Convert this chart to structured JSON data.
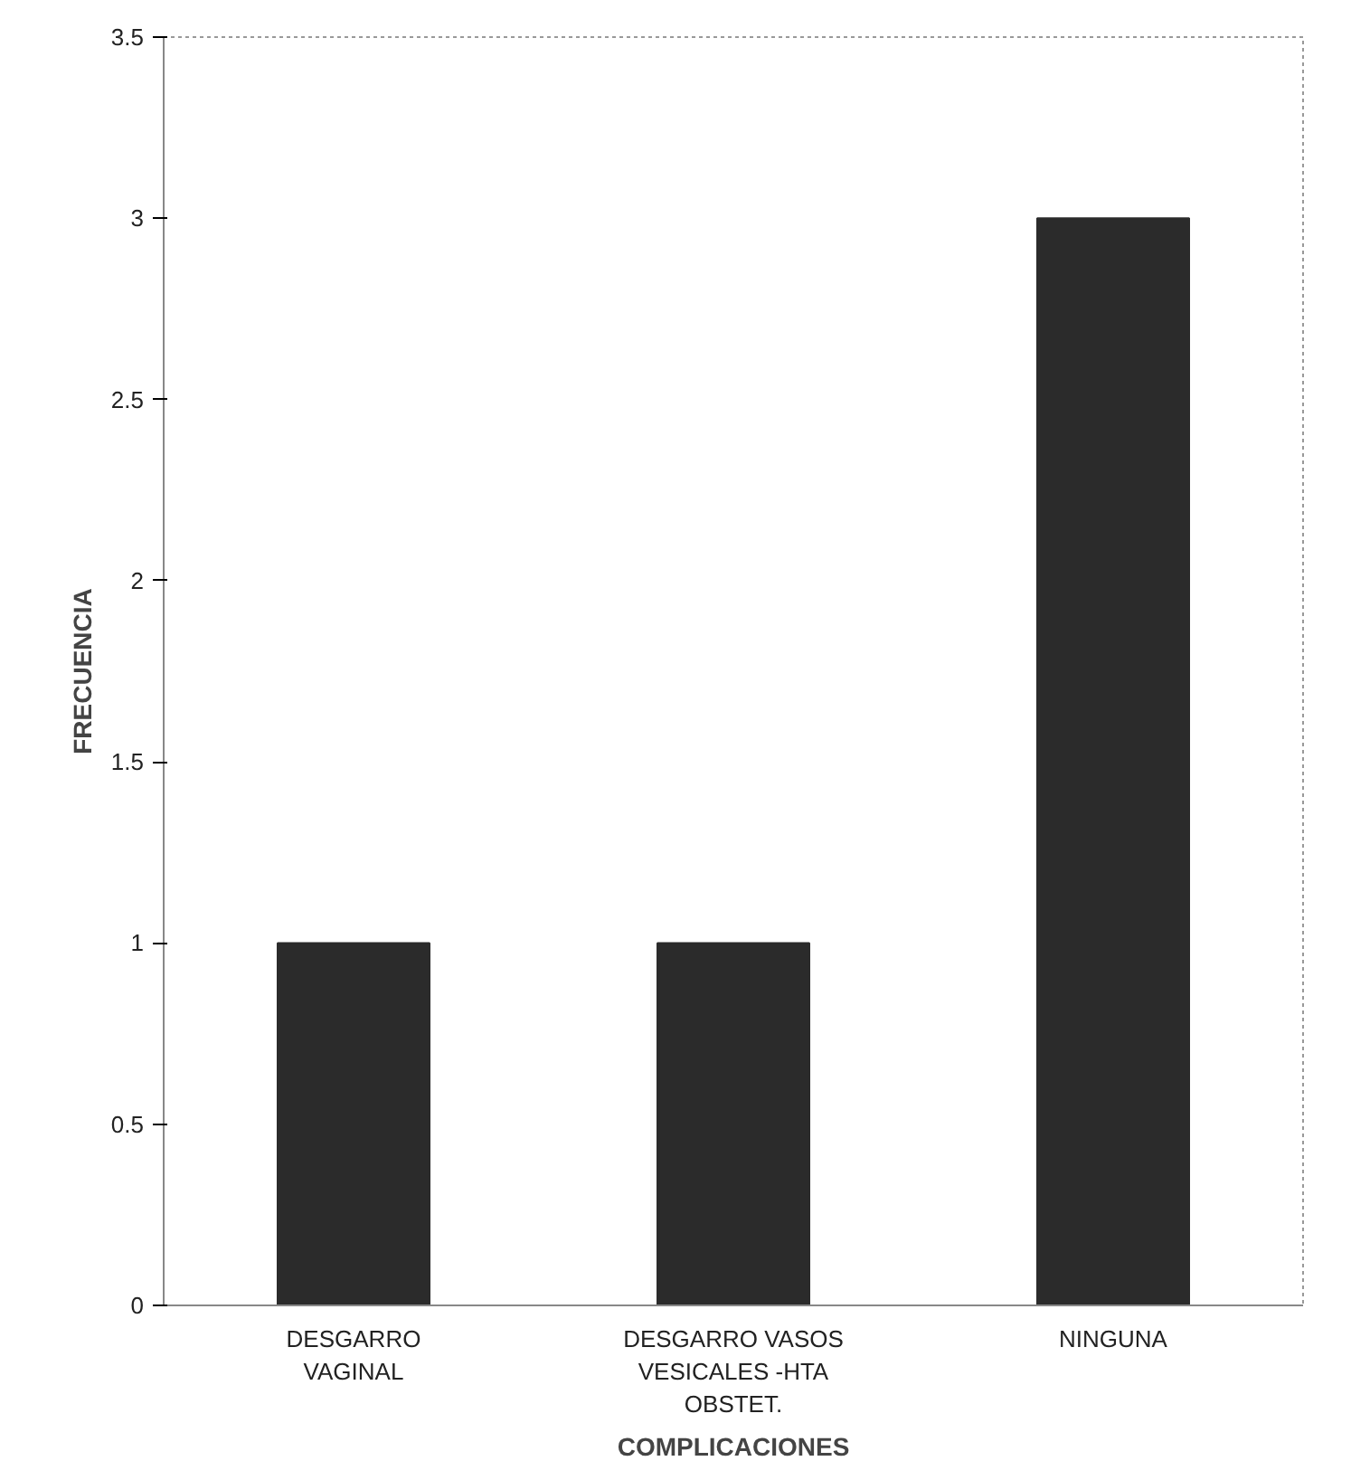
{
  "chart_data": {
    "type": "bar",
    "xlabel": "COMPLICACIONES",
    "ylabel": "FRECUENCIA",
    "categories": [
      "DESGARRO VAGINAL",
      "DESGARRO VASOS VESICALES -HTA OBSTET.",
      "NINGUNA"
    ],
    "values": [
      1,
      1,
      3
    ],
    "color": "#2b2b2b",
    "ylim": [
      0,
      3.5
    ],
    "yticks": [
      0,
      0.5,
      1,
      1.5,
      2,
      2.5,
      3,
      3.5
    ],
    "grid": false
  }
}
